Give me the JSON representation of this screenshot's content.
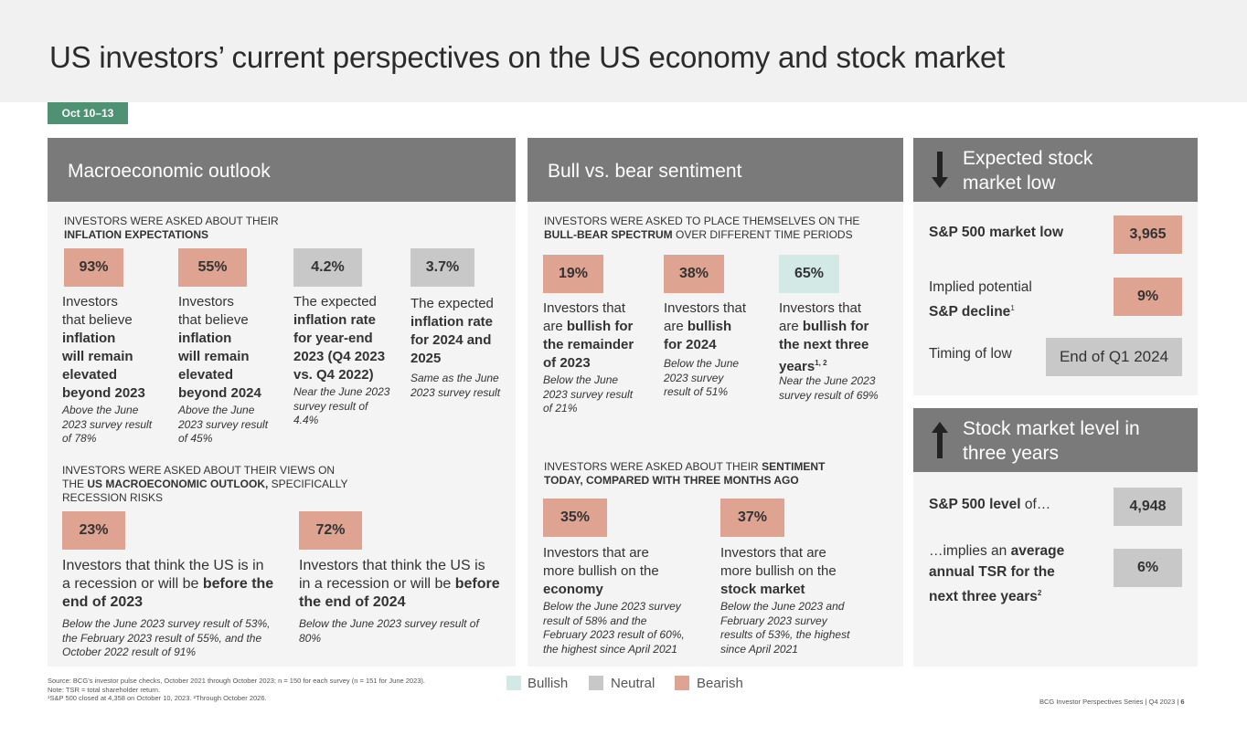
{
  "title": "US investors’ current perspectives on the US economy and stock market",
  "date_tag": "Oct 10–13",
  "macro": {
    "header": "Macroeconomic outlook",
    "q1": {
      "line1": "INVESTORS WERE ASKED ABOUT THEIR",
      "line2": "INFLATION EXPECTATIONS"
    },
    "items": [
      {
        "value": "93%",
        "l1": "Investors",
        "l2": "that believe",
        "l3": "inflation",
        "l4": "will remain",
        "l5": "elevated",
        "l6": "beyond 2023",
        "n1": "Above the June",
        "n2": "2023 survey result",
        "n3": "of 78%"
      },
      {
        "value": "55%",
        "l1": "Investors",
        "l2": "that believe",
        "l3": "inflation",
        "l4": "will remain",
        "l5": "elevated",
        "l6": "beyond 2024",
        "n1": "Above the June",
        "n2": "2023 survey result",
        "n3": "of 45%"
      },
      {
        "value": "4.2%",
        "l1": "The expected",
        "l2": "inflation rate",
        "l3": "for year-end",
        "l4": "2023 (Q4 2023",
        "l5": "vs. Q4 2022)",
        "n1": "Near the June 2023",
        "n2": "survey result of",
        "n3": "4.4%"
      },
      {
        "value": "3.7%",
        "l1": "The expected",
        "l2": "inflation rate",
        "l3": "for 2024 and",
        "l4": "2025",
        "n1": "Same as the June",
        "n2": "2023 survey result"
      }
    ],
    "q2": {
      "line1a": "INVESTORS WERE ASKED ABOUT THEIR VIEWS ON",
      "line2a": "THE ",
      "line2b": "US MACROECONOMIC OUTLOOK,",
      "line2c": " SPECIFICALLY",
      "line3": "RECESSION RISKS"
    },
    "rec": [
      {
        "value": "23%",
        "l1": "Investors that think the US is in",
        "l2a": "a recession or will be ",
        "l2b": "before the",
        "l3": "end of 2023",
        "n1": "Below the June 2023 survey result of 53%,",
        "n2": "the February 2023 result of 55%, and the",
        "n3": "October 2022 result of 91%"
      },
      {
        "value": "72%",
        "l1": "Investors that think the US is",
        "l2a": "in a recession or will be ",
        "l2b": "before",
        "l3": "the end of 2024",
        "n1": "Below the June 2023 survey result of",
        "n2": "80%"
      }
    ]
  },
  "bull": {
    "header": "Bull vs. bear sentiment",
    "q1": {
      "line1": "INVESTORS WERE ASKED TO PLACE THEMSELVES ON THE",
      "line2a": "BULL-BEAR SPECTRUM",
      "line2b": " OVER DIFFERENT TIME PERIODS"
    },
    "items": [
      {
        "value": "19%",
        "l1": "Investors that",
        "l2a": "are ",
        "l2b": "bullish for",
        "l3": "the remainder",
        "l4": "of 2023",
        "n1": "Below the June",
        "n2": "2023 survey result",
        "n3": "of 21%"
      },
      {
        "value": "38%",
        "l1": "Investors that",
        "l2a": "are ",
        "l2b": "bullish",
        "l3": "for 2024",
        "n1": "Below the June",
        "n2": "2023 survey",
        "n3": "result of 51%"
      },
      {
        "value": "65%",
        "l1": "Investors that",
        "l2a": "are ",
        "l2b": "bullish for",
        "l3": "the next three",
        "l4": "years",
        "sup": "1, 2",
        "n1": "Near the June 2023",
        "n2": "survey result of 69%"
      }
    ],
    "q2": {
      "line1a": "INVESTORS WERE ASKED ABOUT THEIR ",
      "line1b": "SENTIMENT",
      "line2": "TODAY, COMPARED WITH THREE MONTHS AGO"
    },
    "sent": [
      {
        "value": "35%",
        "l1": "Investors that are",
        "l2": "more bullish on the",
        "l3": "economy",
        "n1": "Below the June 2023 survey",
        "n2": "result of 58% and the",
        "n3": "February 2023 result of 60%,",
        "n4": "the highest since April 2021"
      },
      {
        "value": "37%",
        "l1": "Investors that are",
        "l2": "more bullish on the",
        "l3": "stock market",
        "n1": "Below the June 2023 and",
        "n2": "February 2023 survey",
        "n3": "results of 53%, the highest",
        "n4": "since April 2021"
      }
    ]
  },
  "low": {
    "header_l1": "Expected stock",
    "header_l2": "market low",
    "r1_label": "S&P 500 market low",
    "r1_value": "3,965",
    "r2_l1": "Implied potential",
    "r2_l2": "S&P decline",
    "r2_sup": "1",
    "r2_value": "9%",
    "r3_label": "Timing of low",
    "r3_value": "End of Q1 2024"
  },
  "level": {
    "header_l1": "Stock market level in",
    "header_l2": "three years",
    "r1_a": "S&P 500 level",
    "r1_b": " of…",
    "r1_value": "4,948",
    "r2_l1a": "…implies an ",
    "r2_l1b": "average",
    "r2_l2": "annual TSR for the",
    "r2_l3": "next three years",
    "r2_sup": "2",
    "r2_value": "6%"
  },
  "legend": {
    "bullish": "Bullish",
    "neutral": "Neutral",
    "bearish": "Bearish",
    "colors": {
      "bullish": "#d3e9e6",
      "neutral": "#c8c8c8",
      "bearish": "#dfa392",
      "header": "#7a7a7a",
      "tag": "#4e9273"
    }
  },
  "footer": {
    "source": "Source: BCG’s investor pulse checks, October 2021 through October 2023; n = 150 for each survey (n = 151 for June 2023).",
    "note": "Note: TSR = total shareholder return.",
    "fn": "¹S&P 500 closed at 4,358 on October 10, 2023. ²Through October 2026.",
    "series": "BCG Investor Perspectives Series | Q4 2023 | ",
    "page": "6"
  }
}
